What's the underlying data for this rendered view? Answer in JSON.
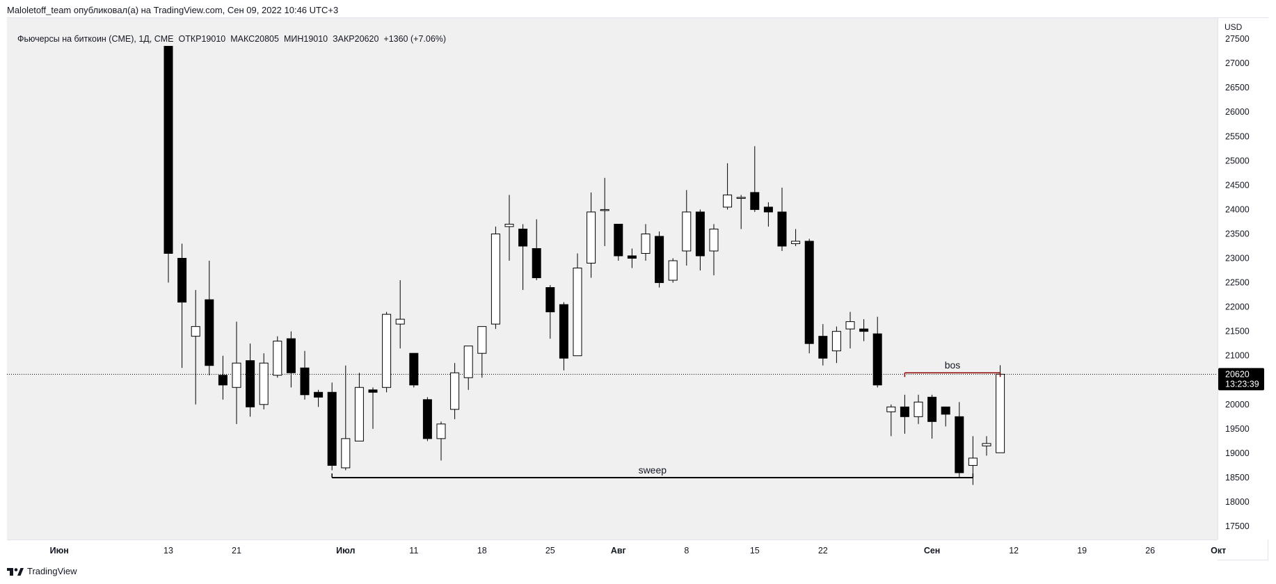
{
  "header": {
    "published": "Maloletoff_team опубликовал(а) на TradingView.com, Сен 09, 2022 10:46 UTC+3"
  },
  "legend": {
    "symbol": "Фьючерсы на биткоин (CME), 1Д, CME",
    "open": "ОТКР19010",
    "high": "МАКС20805",
    "low": "МИН19010",
    "close": "ЗАКР20620",
    "change": "+1360 (+7.06%)"
  },
  "price_scale": {
    "currency": "USD",
    "last_price_label": "20620",
    "countdown_label": "13:23:39"
  },
  "footer": {
    "brand": "TradingView"
  },
  "colors": {
    "plot_background": "#f0f0f0",
    "bear": "#000000",
    "bull": "#ffffff",
    "wick": "#000000",
    "bos_line": "#8b0000",
    "last_price_tag": "#000000"
  },
  "chart_data": {
    "type": "candlestick",
    "title": "Фьючерсы на биткоин (CME), 1Д, CME",
    "ylim": [
      17200,
      27700
    ],
    "y_ticks": [
      17500,
      18000,
      18500,
      19000,
      19500,
      20000,
      20500,
      21000,
      21500,
      22000,
      22500,
      23000,
      23500,
      24000,
      24500,
      25000,
      25500,
      26000,
      26500,
      27000,
      27500
    ],
    "x_tick_labels": [
      {
        "label": "Июн",
        "day_index": -8,
        "bold": true
      },
      {
        "label": "13",
        "day_index": 0,
        "bold": false
      },
      {
        "label": "21",
        "day_index": 5,
        "bold": false
      },
      {
        "label": "Июл",
        "day_index": 13,
        "bold": true
      },
      {
        "label": "11",
        "day_index": 18,
        "bold": false
      },
      {
        "label": "18",
        "day_index": 23,
        "bold": false
      },
      {
        "label": "25",
        "day_index": 28,
        "bold": false
      },
      {
        "label": "Авг",
        "day_index": 33,
        "bold": true
      },
      {
        "label": "8",
        "day_index": 38,
        "bold": false
      },
      {
        "label": "15",
        "day_index": 43,
        "bold": false
      },
      {
        "label": "22",
        "day_index": 48,
        "bold": false
      },
      {
        "label": "Сен",
        "day_index": 56,
        "bold": true
      },
      {
        "label": "12",
        "day_index": 62,
        "bold": false
      },
      {
        "label": "19",
        "day_index": 67,
        "bold": false
      },
      {
        "label": "26",
        "day_index": 72,
        "bold": false
      },
      {
        "label": "Окт",
        "day_index": 77,
        "bold": true
      }
    ],
    "candles": [
      {
        "i": 0,
        "o": 27350,
        "h": 27350,
        "l": 22500,
        "c": 23100
      },
      {
        "i": 1,
        "o": 23000,
        "h": 23300,
        "l": 20750,
        "c": 22100
      },
      {
        "i": 2,
        "o": 21400,
        "h": 22350,
        "l": 20000,
        "c": 21600
      },
      {
        "i": 3,
        "o": 22150,
        "h": 22950,
        "l": 20600,
        "c": 20800
      },
      {
        "i": 4,
        "o": 20600,
        "h": 21000,
        "l": 20100,
        "c": 20400
      },
      {
        "i": 5,
        "o": 20350,
        "h": 21700,
        "l": 19600,
        "c": 20850
      },
      {
        "i": 6,
        "o": 20900,
        "h": 21250,
        "l": 19750,
        "c": 19950
      },
      {
        "i": 7,
        "o": 20000,
        "h": 21050,
        "l": 19900,
        "c": 20850
      },
      {
        "i": 8,
        "o": 20600,
        "h": 21400,
        "l": 20550,
        "c": 21300
      },
      {
        "i": 9,
        "o": 21350,
        "h": 21500,
        "l": 20350,
        "c": 20650
      },
      {
        "i": 10,
        "o": 20750,
        "h": 21100,
        "l": 20100,
        "c": 20200
      },
      {
        "i": 11,
        "o": 20250,
        "h": 20300,
        "l": 19950,
        "c": 20150
      },
      {
        "i": 12,
        "o": 20250,
        "h": 20450,
        "l": 18650,
        "c": 18750
      },
      {
        "i": 13,
        "o": 18700,
        "h": 20800,
        "l": 18650,
        "c": 19300
      },
      {
        "i": 14,
        "o": 19250,
        "h": 20650,
        "l": 19250,
        "c": 20350
      },
      {
        "i": 15,
        "o": 20300,
        "h": 20350,
        "l": 19500,
        "c": 20250
      },
      {
        "i": 16,
        "o": 20350,
        "h": 21900,
        "l": 20250,
        "c": 21850
      },
      {
        "i": 17,
        "o": 21650,
        "h": 22550,
        "l": 21150,
        "c": 21750
      },
      {
        "i": 18,
        "o": 21050,
        "h": 21050,
        "l": 20350,
        "c": 20400
      },
      {
        "i": 19,
        "o": 20100,
        "h": 20150,
        "l": 19250,
        "c": 19300
      },
      {
        "i": 20,
        "o": 19300,
        "h": 19650,
        "l": 18850,
        "c": 19600
      },
      {
        "i": 21,
        "o": 19900,
        "h": 20850,
        "l": 19700,
        "c": 20650
      },
      {
        "i": 22,
        "o": 20550,
        "h": 21200,
        "l": 20300,
        "c": 21200
      },
      {
        "i": 23,
        "o": 21050,
        "h": 21600,
        "l": 20550,
        "c": 21600
      },
      {
        "i": 24,
        "o": 21650,
        "h": 23650,
        "l": 21550,
        "c": 23500
      },
      {
        "i": 25,
        "o": 23650,
        "h": 24300,
        "l": 22950,
        "c": 23700
      },
      {
        "i": 26,
        "o": 23600,
        "h": 23700,
        "l": 22350,
        "c": 23250
      },
      {
        "i": 27,
        "o": 23200,
        "h": 23800,
        "l": 22550,
        "c": 22600
      },
      {
        "i": 28,
        "o": 22400,
        "h": 22450,
        "l": 21350,
        "c": 21900
      },
      {
        "i": 29,
        "o": 22050,
        "h": 22100,
        "l": 20700,
        "c": 20950
      },
      {
        "i": 30,
        "o": 21000,
        "h": 23100,
        "l": 21000,
        "c": 22800
      },
      {
        "i": 31,
        "o": 22900,
        "h": 24350,
        "l": 22600,
        "c": 23950
      },
      {
        "i": 32,
        "o": 24000,
        "h": 24650,
        "l": 23250,
        "c": 24000
      },
      {
        "i": 33,
        "o": 23700,
        "h": 23700,
        "l": 22950,
        "c": 23050
      },
      {
        "i": 34,
        "o": 23050,
        "h": 23200,
        "l": 22800,
        "c": 23000
      },
      {
        "i": 35,
        "o": 23100,
        "h": 23700,
        "l": 22950,
        "c": 23500
      },
      {
        "i": 36,
        "o": 23450,
        "h": 23550,
        "l": 22400,
        "c": 22500
      },
      {
        "i": 37,
        "o": 22550,
        "h": 23000,
        "l": 22500,
        "c": 22950
      },
      {
        "i": 38,
        "o": 23150,
        "h": 24400,
        "l": 22850,
        "c": 23950
      },
      {
        "i": 39,
        "o": 23950,
        "h": 24000,
        "l": 22750,
        "c": 23050
      },
      {
        "i": 40,
        "o": 23150,
        "h": 23700,
        "l": 22650,
        "c": 23600
      },
      {
        "i": 41,
        "o": 24050,
        "h": 24950,
        "l": 24000,
        "c": 24300
      },
      {
        "i": 42,
        "o": 24250,
        "h": 24300,
        "l": 23600,
        "c": 24250
      },
      {
        "i": 43,
        "o": 24350,
        "h": 25300,
        "l": 23950,
        "c": 24000
      },
      {
        "i": 44,
        "o": 24050,
        "h": 24150,
        "l": 23650,
        "c": 23950
      },
      {
        "i": 45,
        "o": 23950,
        "h": 24450,
        "l": 23150,
        "c": 23250
      },
      {
        "i": 46,
        "o": 23300,
        "h": 23600,
        "l": 23250,
        "c": 23350
      },
      {
        "i": 47,
        "o": 23350,
        "h": 23400,
        "l": 21050,
        "c": 21250
      },
      {
        "i": 48,
        "o": 21400,
        "h": 21650,
        "l": 20800,
        "c": 20950
      },
      {
        "i": 49,
        "o": 21100,
        "h": 21600,
        "l": 20850,
        "c": 21500
      },
      {
        "i": 50,
        "o": 21550,
        "h": 21900,
        "l": 21150,
        "c": 21700
      },
      {
        "i": 51,
        "o": 21550,
        "h": 21750,
        "l": 21300,
        "c": 21500
      },
      {
        "i": 52,
        "o": 21450,
        "h": 21800,
        "l": 20350,
        "c": 20400
      },
      {
        "i": 53,
        "o": 19850,
        "h": 20000,
        "l": 19350,
        "c": 19950
      },
      {
        "i": 54,
        "o": 19950,
        "h": 20200,
        "l": 19400,
        "c": 19750
      },
      {
        "i": 55,
        "o": 19750,
        "h": 20200,
        "l": 19600,
        "c": 20050
      },
      {
        "i": 56,
        "o": 20150,
        "h": 20200,
        "l": 19300,
        "c": 19650
      },
      {
        "i": 57,
        "o": 19950,
        "h": 19950,
        "l": 19550,
        "c": 19800
      },
      {
        "i": 58,
        "o": 19750,
        "h": 20050,
        "l": 18500,
        "c": 18600
      },
      {
        "i": 59,
        "o": 18750,
        "h": 19350,
        "l": 18350,
        "c": 18900
      },
      {
        "i": 60,
        "o": 19150,
        "h": 19350,
        "l": 18950,
        "c": 19200
      },
      {
        "i": 61,
        "o": 19010,
        "h": 20805,
        "l": 19010,
        "c": 20620
      }
    ],
    "last_price": 20620,
    "annotations": [
      {
        "type": "level",
        "label": "sweep",
        "price": 18500,
        "from_index": 12,
        "to_index": 59
      },
      {
        "type": "level",
        "label": "bos",
        "price": 20650,
        "from_index": 54,
        "to_index": 61
      }
    ]
  }
}
